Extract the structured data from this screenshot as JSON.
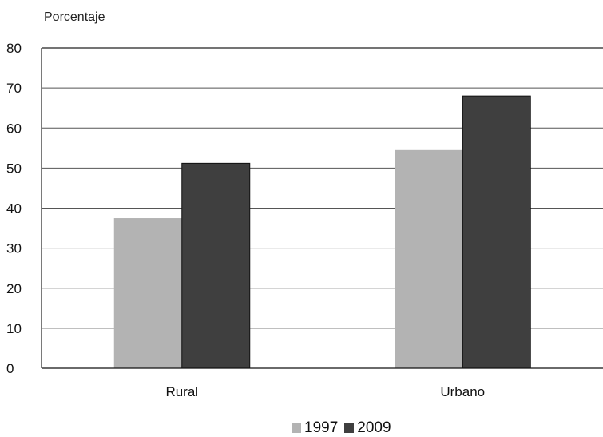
{
  "chart_data": {
    "type": "bar",
    "ylabel": "Porcentaje",
    "xlabel": "",
    "categories": [
      "Rural",
      "Urbano"
    ],
    "series": [
      {
        "name": "1997",
        "values": [
          37.5,
          54.5
        ],
        "color": "#b3b3b3"
      },
      {
        "name": "2009",
        "values": [
          51.2,
          68.0
        ],
        "color": "#3f3f3f"
      }
    ],
    "ylim": [
      0,
      80
    ],
    "yticks": [
      0,
      10,
      20,
      30,
      40,
      50,
      60,
      70,
      80
    ],
    "grid": true,
    "legend_position": "bottom"
  }
}
